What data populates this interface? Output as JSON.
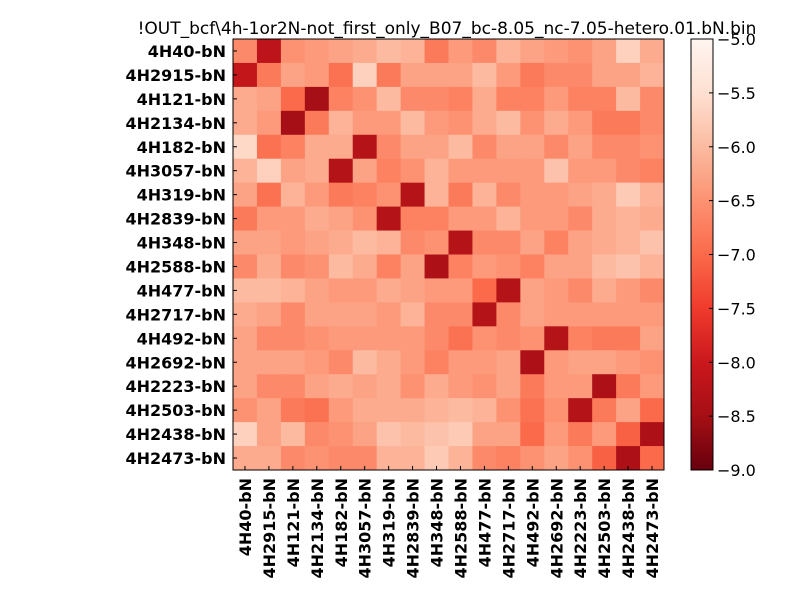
{
  "chart_data": {
    "type": "heatmap",
    "title": "!OUT_bcf\\4h-1or2N-not_first_only_B07_bc-8.05_nc-7.05-hetero.01.bN.bin",
    "labels": [
      "4H40-bN",
      "4H2915-bN",
      "4H121-bN",
      "4H2134-bN",
      "4H182-bN",
      "4H3057-bN",
      "4H319-bN",
      "4H2839-bN",
      "4H348-bN",
      "4H2588-bN",
      "4H477-bN",
      "4H2717-bN",
      "4H492-bN",
      "4H2692-bN",
      "4H2223-bN",
      "4H2503-bN",
      "4H2438-bN",
      "4H2473-bN"
    ],
    "values": [
      [
        -6.6,
        -8.2,
        -6.5,
        -6.4,
        -6.3,
        -6.2,
        -6.0,
        -6.1,
        -6.8,
        -6.4,
        -6.6,
        -6.1,
        -6.3,
        -6.4,
        -6.5,
        -6.3,
        -5.7,
        -6.2
      ],
      [
        -8.1,
        -6.8,
        -6.3,
        -6.4,
        -6.9,
        -5.7,
        -6.8,
        -6.3,
        -6.3,
        -6.3,
        -6.0,
        -6.4,
        -6.8,
        -6.6,
        -6.6,
        -6.3,
        -6.3,
        -6.1
      ],
      [
        -6.2,
        -6.3,
        -7.0,
        -8.5,
        -6.7,
        -6.5,
        -6.0,
        -6.6,
        -6.6,
        -6.7,
        -6.2,
        -6.7,
        -6.7,
        -6.4,
        -6.7,
        -6.7,
        -6.0,
        -6.6
      ],
      [
        -6.2,
        -6.4,
        -8.5,
        -6.8,
        -6.1,
        -6.4,
        -6.4,
        -6.0,
        -6.4,
        -6.5,
        -6.2,
        -6.0,
        -6.5,
        -6.2,
        -6.4,
        -6.8,
        -6.8,
        -6.6
      ],
      [
        -5.6,
        -6.9,
        -6.7,
        -6.2,
        -6.2,
        -8.3,
        -6.6,
        -6.3,
        -6.3,
        -6.0,
        -6.6,
        -6.3,
        -6.3,
        -6.6,
        -6.3,
        -6.6,
        -6.6,
        -6.5
      ],
      [
        -6.1,
        -5.7,
        -6.3,
        -6.2,
        -8.3,
        -6.3,
        -6.7,
        -6.5,
        -6.1,
        -6.4,
        -6.4,
        -6.4,
        -6.4,
        -5.9,
        -6.4,
        -6.4,
        -6.6,
        -6.7
      ],
      [
        -6.3,
        -6.9,
        -6.1,
        -6.4,
        -6.8,
        -6.7,
        -6.5,
        -8.3,
        -6.1,
        -6.8,
        -6.1,
        -6.6,
        -6.4,
        -6.4,
        -6.3,
        -6.2,
        -5.8,
        -6.1
      ],
      [
        -6.8,
        -6.4,
        -6.4,
        -6.2,
        -6.3,
        -6.5,
        -8.3,
        -6.7,
        -6.7,
        -6.4,
        -6.4,
        -6.1,
        -6.4,
        -6.4,
        -6.6,
        -6.2,
        -6.1,
        -6.2
      ],
      [
        -6.3,
        -6.3,
        -6.4,
        -6.3,
        -6.2,
        -6.0,
        -6.1,
        -6.6,
        -6.5,
        -8.3,
        -6.6,
        -6.6,
        -6.3,
        -6.7,
        -6.3,
        -6.2,
        -6.1,
        -5.9
      ],
      [
        -6.6,
        -6.2,
        -6.6,
        -6.5,
        -6.0,
        -6.2,
        -6.7,
        -6.3,
        -8.4,
        -6.7,
        -6.4,
        -6.5,
        -6.7,
        -6.3,
        -6.3,
        -6.0,
        -5.9,
        -6.1
      ],
      [
        -6.0,
        -6.0,
        -6.1,
        -6.3,
        -6.4,
        -6.4,
        -6.2,
        -6.3,
        -6.4,
        -6.4,
        -7.0,
        -8.3,
        -6.3,
        -6.4,
        -6.6,
        -6.2,
        -6.4,
        -6.6
      ],
      [
        -6.2,
        -6.3,
        -6.6,
        -6.3,
        -6.3,
        -6.3,
        -6.4,
        -6.1,
        -6.6,
        -6.6,
        -8.3,
        -6.6,
        -6.3,
        -6.4,
        -6.4,
        -6.4,
        -6.4,
        -6.4
      ],
      [
        -6.3,
        -6.6,
        -6.6,
        -6.5,
        -6.4,
        -6.4,
        -6.4,
        -6.4,
        -6.6,
        -6.9,
        -6.5,
        -6.6,
        -6.5,
        -8.3,
        -6.7,
        -6.8,
        -6.8,
        -6.3
      ],
      [
        -6.3,
        -6.3,
        -6.3,
        -6.4,
        -6.6,
        -6.0,
        -6.2,
        -6.4,
        -6.7,
        -6.4,
        -6.4,
        -6.3,
        -8.4,
        -6.4,
        -6.3,
        -6.3,
        -6.4,
        -6.5
      ],
      [
        -6.3,
        -6.6,
        -6.6,
        -6.3,
        -6.2,
        -6.3,
        -6.2,
        -6.5,
        -6.2,
        -6.4,
        -6.5,
        -6.3,
        -6.8,
        -6.4,
        -6.4,
        -8.4,
        -6.8,
        -6.4
      ],
      [
        -6.5,
        -6.3,
        -6.8,
        -6.9,
        -6.4,
        -6.2,
        -6.2,
        -6.2,
        -6.1,
        -6.0,
        -6.1,
        -6.5,
        -6.9,
        -6.5,
        -8.3,
        -6.8,
        -6.3,
        -7.0
      ],
      [
        -5.7,
        -6.3,
        -6.0,
        -6.6,
        -6.5,
        -6.3,
        -5.9,
        -6.0,
        -5.9,
        -5.8,
        -6.3,
        -6.3,
        -7.0,
        -6.4,
        -6.8,
        -6.4,
        -7.1,
        -8.4
      ],
      [
        -6.2,
        -6.2,
        -6.6,
        -6.5,
        -6.6,
        -6.6,
        -6.1,
        -6.1,
        -5.8,
        -6.1,
        -6.6,
        -6.7,
        -6.5,
        -6.3,
        -6.5,
        -7.1,
        -8.4,
        -7.0
      ]
    ],
    "colorbar": {
      "min": -9.0,
      "max": -5.0,
      "ticks": [
        "-9.0",
        "-8.5",
        "-8.0",
        "-7.5",
        "-7.0",
        "-6.5",
        "-6.0",
        "-5.5",
        "-5.0"
      ],
      "colormap": "Reds_r"
    }
  }
}
